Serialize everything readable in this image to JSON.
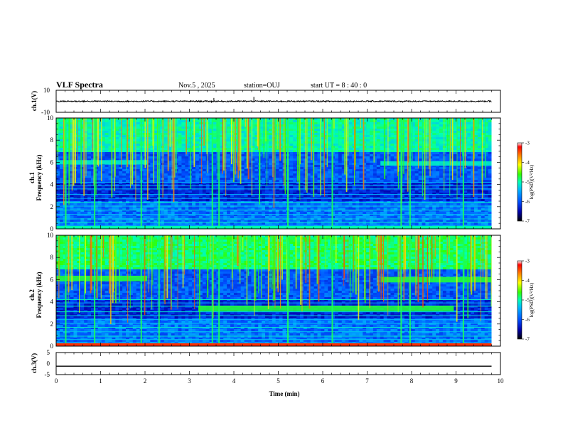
{
  "header": {
    "title": "VLF Spectra",
    "date": "Nov.5  , 2025",
    "station": "station=OUJ",
    "start": "start  UT  =   8  : 40 : 0"
  },
  "chart_data": [
    {
      "type": "line",
      "name": "ch1-waveform",
      "ylabel": "ch.1(V)",
      "ylim": [
        -10,
        10
      ],
      "yticks": [
        "10",
        "-10"
      ],
      "baseline": 0,
      "noise_amplitude": 0.6,
      "spikes": [
        {
          "x": 3.55,
          "y": 3
        },
        {
          "x": 4.45,
          "y": 4
        },
        {
          "x": 3.5,
          "y": -1.5
        },
        {
          "x": 7.8,
          "y": -1.2
        }
      ]
    },
    {
      "type": "heatmap",
      "name": "ch1-spectrogram",
      "ylabel": "ch.1\nFrequency (kHz)",
      "ylabel_line1": "ch.1",
      "ylabel_line2": "Frequency (kHz)",
      "ylim": [
        0,
        10
      ],
      "yticks": [
        "0",
        "2",
        "4",
        "6",
        "8",
        "10"
      ],
      "colorbar": {
        "label": "log(PSD)(V²/Hz)",
        "range": [
          -7,
          -3
        ],
        "ticks": [
          "-3",
          "-4",
          "-5",
          "-6",
          "-7"
        ]
      },
      "emission_bands": [
        {
          "t0": 0,
          "t1": 2.05,
          "f": 6.0,
          "width": 0.4
        },
        {
          "t0": 7.3,
          "t1": 9.8,
          "f": 5.9,
          "width": 0.4
        }
      ],
      "sferic_times": [
        0.2,
        0.85,
        1.9,
        2.3,
        3.5,
        3.65,
        5.2,
        6.2,
        7.75,
        7.95,
        9.15
      ]
    },
    {
      "type": "heatmap",
      "name": "ch2-spectrogram",
      "ylabel_line1": "ch.2",
      "ylabel_line2": "Frequency (kHz)",
      "ylim": [
        0,
        10
      ],
      "yticks": [
        "0",
        "2",
        "4",
        "6",
        "8",
        "10"
      ],
      "colorbar": {
        "label": "log(PSD)(V²/Hz)",
        "range": [
          -7,
          -3
        ],
        "ticks": [
          "-3",
          "-4",
          "-5",
          "-6",
          "-7"
        ]
      },
      "emission_bands": [
        {
          "t0": 0,
          "t1": 2.05,
          "f": 6.1,
          "width": 0.5
        },
        {
          "t0": 7.3,
          "t1": 9.8,
          "f": 6.0,
          "width": 0.5
        },
        {
          "t0": 3.2,
          "t1": 8.95,
          "f": 3.4,
          "width": 0.5
        }
      ],
      "sferic_times": [
        0.2,
        0.85,
        1.9,
        2.3,
        3.5,
        3.65,
        5.2,
        6.2,
        7.75,
        7.95,
        9.15
      ]
    },
    {
      "type": "line",
      "name": "ch3-waveform",
      "ylabel": "ch.3(V)",
      "ylim": [
        -5,
        5
      ],
      "yticks": [
        "5",
        "0",
        "-5"
      ],
      "baseline": -1.2
    }
  ],
  "x_axis": {
    "label": "Time  (min)",
    "range": [
      0,
      10
    ],
    "ticks": [
      "0",
      "1",
      "2",
      "3",
      "4",
      "5",
      "6",
      "7",
      "8",
      "9",
      "10"
    ],
    "data_end": 9.8
  },
  "colors": {
    "colormap": [
      "#000000",
      "#0000aa",
      "#0050ff",
      "#00b4ff",
      "#00ffb4",
      "#32ff00",
      "#ffff00",
      "#ff8000",
      "#ff0000",
      "#ffffff"
    ],
    "trace": "#000000"
  }
}
